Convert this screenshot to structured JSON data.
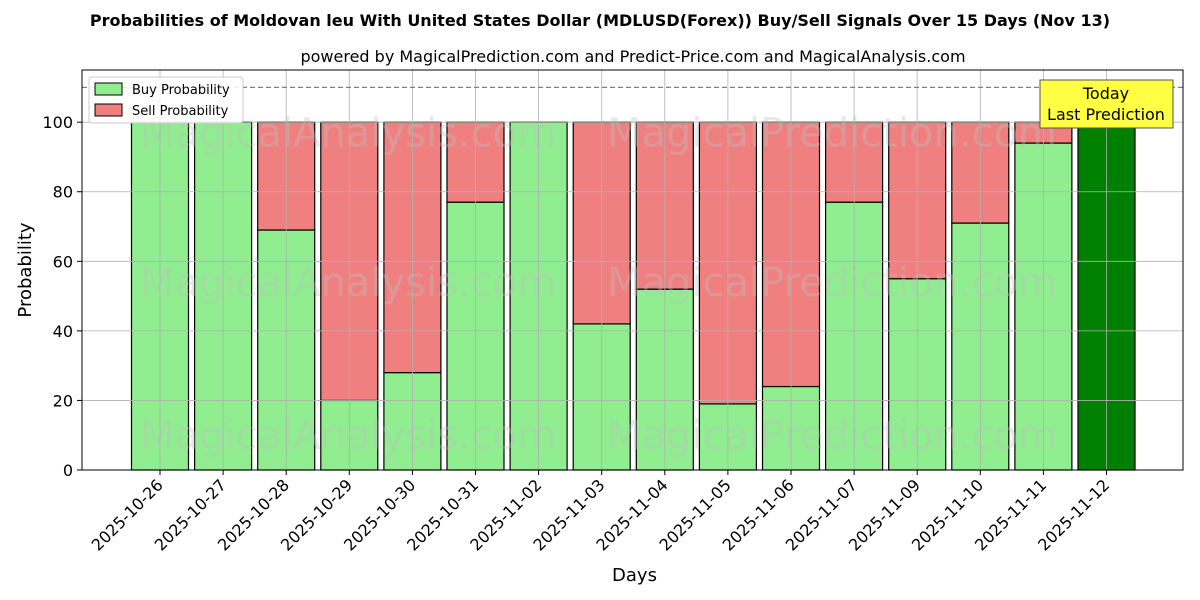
{
  "chart_data": {
    "type": "bar",
    "stacked": true,
    "title": "Probabilities of Moldovan leu With United States Dollar (MDLUSD(Forex)) Buy/Sell Signals Over 15 Days (Nov 13)",
    "subtitle": "powered by MagicalPrediction.com and Predict-Price.com and MagicalAnalysis.com",
    "xlabel": "Days",
    "ylabel": "Probability",
    "ylim": [
      0,
      115
    ],
    "yticks": [
      0,
      20,
      40,
      60,
      80,
      100
    ],
    "reference_line": 110,
    "grid": true,
    "legend_position": "top-left",
    "categories": [
      "2025-10-26",
      "2025-10-27",
      "2025-10-28",
      "2025-10-29",
      "2025-10-30",
      "2025-10-31",
      "2025-11-02",
      "2025-11-03",
      "2025-11-04",
      "2025-11-05",
      "2025-11-06",
      "2025-11-07",
      "2025-11-09",
      "2025-11-10",
      "2025-11-11",
      "2025-11-12"
    ],
    "series": [
      {
        "name": "Buy Probability",
        "color": "#90ee90",
        "values": [
          100,
          100,
          69,
          20,
          28,
          77,
          100,
          42,
          52,
          19,
          24,
          77,
          55,
          71,
          94,
          100
        ]
      },
      {
        "name": "Sell Probability",
        "color": "#f08080",
        "values": [
          0,
          0,
          31,
          80,
          72,
          23,
          0,
          58,
          48,
          81,
          76,
          23,
          45,
          29,
          6,
          0
        ]
      }
    ],
    "highlight": {
      "index": 15,
      "color": "#008000"
    },
    "annotation": {
      "line1": "Today",
      "line2": "Last Prediction",
      "bg": "#ffff44"
    },
    "watermarks": [
      "MagicalAnalysis.com",
      "MagicalPrediction.com"
    ]
  }
}
